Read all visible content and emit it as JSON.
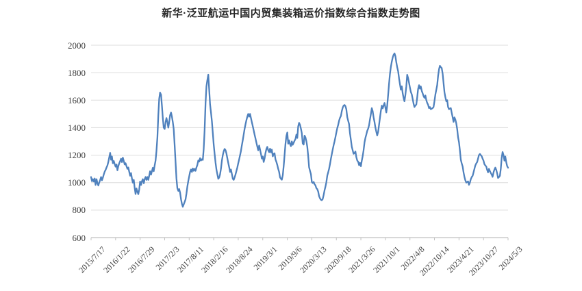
{
  "page": {
    "background": "#ffffff"
  },
  "chart_data": {
    "type": "line",
    "title": "新华·泛亚航运中国内贸集装箱运价指数综合指数走势图",
    "xlabel": "",
    "ylabel": "",
    "ylim": [
      600,
      2000
    ],
    "y_ticks": [
      600,
      800,
      1000,
      1200,
      1400,
      1600,
      1800,
      2000
    ],
    "grid": "horizontal",
    "legend": "none",
    "x_tick_labels": [
      "2015/7/17",
      "2016/1/22",
      "2016/7/29",
      "2017/2/3",
      "2017/8/11",
      "2018/2/16",
      "2018/8/24",
      "2019/3/1",
      "2019/9/6",
      "2020/3/13",
      "2020/9/18",
      "2021/3/26",
      "2021/10/1",
      "2022/4/8",
      "2022/10/14",
      "2023/4/21",
      "2023/10/27",
      "2024/5/3"
    ],
    "x_label_interval_points": 27,
    "frequency": "weekly",
    "colors": {
      "line": "#4f81bd",
      "gridline": "#dcdcdc",
      "axis": "#c0c0c0",
      "tick": "#c0c0c0",
      "label": "#404040",
      "title": "#262626"
    },
    "values": [
      1041,
      1010,
      1025,
      1008,
      1030,
      983,
      1025,
      996,
      979,
      1000,
      1020,
      1041,
      1017,
      1035,
      1060,
      1080,
      1092,
      1110,
      1125,
      1150,
      1183,
      1217,
      1166,
      1190,
      1141,
      1157,
      1135,
      1116,
      1132,
      1090,
      1120,
      1140,
      1157,
      1174,
      1149,
      1182,
      1157,
      1132,
      1141,
      1120,
      1100,
      1110,
      1080,
      1050,
      1070,
      1030,
      1000,
      1020,
      960,
      917,
      958,
      933,
      916,
      950,
      1008,
      983,
      1010,
      1025,
      995,
      1025,
      1041,
      1020,
      1041,
      1020,
      1050,
      1083,
      1058,
      1083,
      1108,
      1083,
      1125,
      1160,
      1230,
      1330,
      1490,
      1610,
      1655,
      1640,
      1560,
      1470,
      1400,
      1390,
      1440,
      1470,
      1440,
      1400,
      1440,
      1490,
      1510,
      1480,
      1440,
      1390,
      1270,
      1150,
      1030,
      960,
      940,
      953,
      928,
      878,
      845,
      824,
      841,
      860,
      878,
      920,
      970,
      1012,
      1045,
      1078,
      1095,
      1078,
      1103,
      1086,
      1100,
      1086,
      1110,
      1128,
      1161,
      1153,
      1178,
      1161,
      1170,
      1165,
      1245,
      1378,
      1578,
      1700,
      1745,
      1786,
      1678,
      1570,
      1512,
      1445,
      1362,
      1278,
      1212,
      1145,
      1095,
      1062,
      1028,
      1037,
      1060,
      1100,
      1161,
      1200,
      1228,
      1245,
      1236,
      1212,
      1178,
      1145,
      1112,
      1078,
      1095,
      1062,
      1028,
      1020,
      1037,
      1060,
      1085,
      1110,
      1140,
      1170,
      1200,
      1230,
      1270,
      1310,
      1350,
      1390,
      1425,
      1455,
      1480,
      1500,
      1480,
      1500,
      1470,
      1440,
      1410,
      1380,
      1350,
      1320,
      1290,
      1262,
      1235,
      1270,
      1240,
      1210,
      1175,
      1190,
      1150,
      1175,
      1215,
      1245,
      1260,
      1235,
      1222,
      1247,
      1220,
      1240,
      1191,
      1210,
      1214,
      1170,
      1150,
      1128,
      1100,
      1079,
      1038,
      1028,
      1021,
      1054,
      1120,
      1200,
      1280,
      1340,
      1365,
      1283,
      1308,
      1280,
      1265,
      1300,
      1275,
      1290,
      1305,
      1317,
      1350,
      1325,
      1408,
      1435,
      1420,
      1392,
      1360,
      1285,
      1277,
      1342,
      1330,
      1300,
      1260,
      1194,
      1112,
      1085,
      1062,
      1005,
      997,
      1005,
      988,
      980,
      960,
      952,
      935,
      902,
      885,
      875,
      872,
      880,
      910,
      944,
      970,
      1002,
      1051,
      1075,
      1100,
      1133,
      1174,
      1207,
      1240,
      1273,
      1300,
      1331,
      1364,
      1397,
      1420,
      1450,
      1471,
      1485,
      1520,
      1545,
      1560,
      1565,
      1556,
      1534,
      1476,
      1450,
      1426,
      1360,
      1310,
      1260,
      1235,
      1210,
      1215,
      1227,
      1185,
      1160,
      1152,
      1127,
      1144,
      1119,
      1160,
      1193,
      1235,
      1293,
      1326,
      1350,
      1376,
      1393,
      1417,
      1459,
      1500,
      1542,
      1520,
      1476,
      1440,
      1400,
      1370,
      1343,
      1370,
      1420,
      1470,
      1520,
      1560,
      1540,
      1560,
      1580,
      1545,
      1510,
      1560,
      1640,
      1720,
      1790,
      1840,
      1880,
      1910,
      1930,
      1940,
      1920,
      1876,
      1840,
      1809,
      1759,
      1717,
      1676,
      1701,
      1651,
      1617,
      1592,
      1640,
      1700,
      1785,
      1760,
      1726,
      1692,
      1660,
      1642,
      1609,
      1575,
      1550,
      1562,
      1567,
      1620,
      1680,
      1709,
      1684,
      1700,
      1667,
      1650,
      1630,
      1617,
      1634,
      1600,
      1580,
      1567,
      1542,
      1550,
      1534,
      1538,
      1542,
      1550,
      1592,
      1642,
      1675,
      1709,
      1775,
      1825,
      1850,
      1840,
      1834,
      1792,
      1725,
      1659,
      1620,
      1592,
      1600,
      1550,
      1534,
      1540,
      1542,
      1509,
      1475,
      1442,
      1475,
      1460,
      1430,
      1390,
      1330,
      1292,
      1233,
      1167,
      1140,
      1117,
      1075,
      1042,
      1017,
      1000,
      1005,
      1009,
      984,
      1000,
      1025,
      1040,
      1050,
      1075,
      1100,
      1125,
      1140,
      1150,
      1175,
      1200,
      1209,
      1200,
      1192,
      1175,
      1159,
      1134,
      1125,
      1117,
      1092,
      1075,
      1100,
      1084,
      1070,
      1059,
      1042,
      1075,
      1095,
      1109,
      1092,
      1067,
      1034,
      1040,
      1050,
      1100,
      1180,
      1223,
      1200,
      1160,
      1190,
      1150,
      1120,
      1108
    ]
  }
}
